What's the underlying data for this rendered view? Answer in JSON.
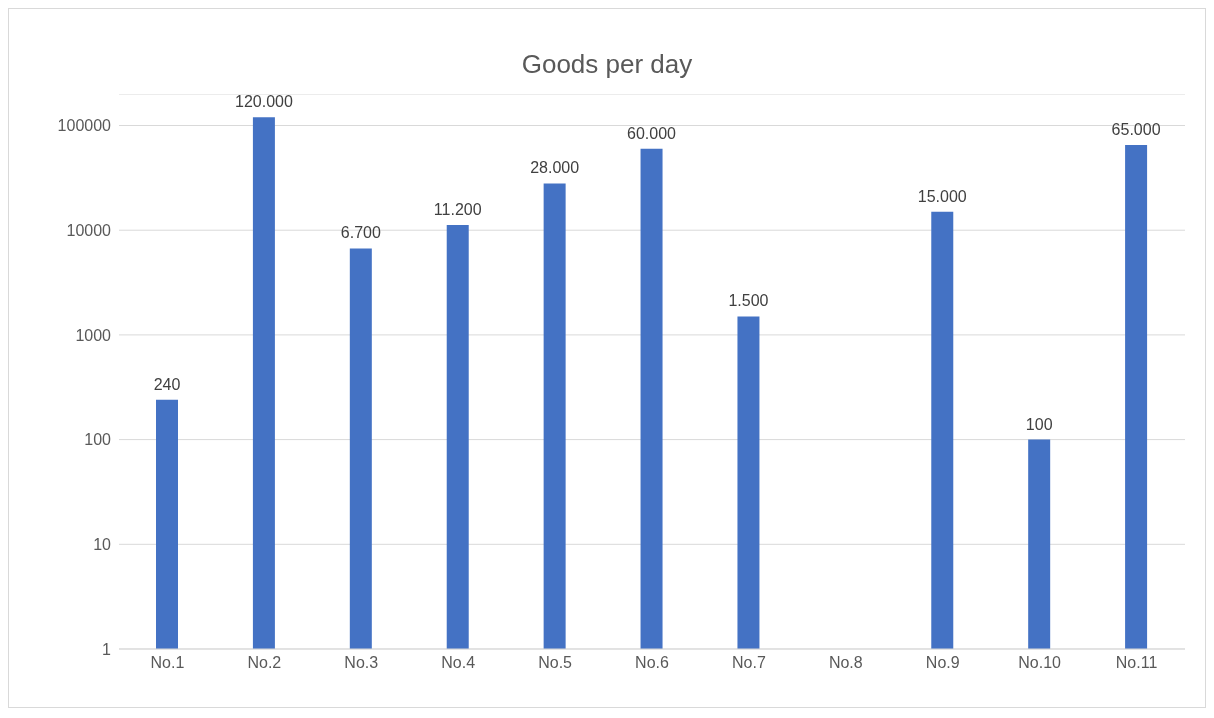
{
  "chart_data": {
    "type": "bar",
    "title": "Goods per day",
    "categories": [
      "No.1",
      "No.2",
      "No.3",
      "No.4",
      "No.5",
      "No.6",
      "No.7",
      "No.8",
      "No.9",
      "No.10",
      "No.11"
    ],
    "values": [
      240,
      120000,
      6700,
      11200,
      28000,
      60000,
      1500,
      null,
      15000,
      100,
      65000
    ],
    "value_labels": [
      "240",
      "120.000",
      "6.700",
      "11.200",
      "28.000",
      "60.000",
      "1.500",
      null,
      "15.000",
      "100",
      "65.000"
    ],
    "color": "#4472c4",
    "log": "y",
    "ylim": [
      1,
      200000
    ],
    "yticks": [
      1,
      10,
      100,
      1000,
      10000,
      100000
    ],
    "grid": "y"
  }
}
